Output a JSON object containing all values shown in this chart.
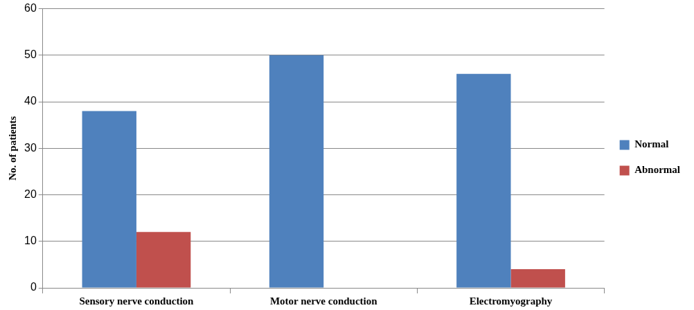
{
  "chart_data": {
    "type": "bar",
    "ylabel": "No. of patients",
    "categories": [
      "Sensory nerve conduction",
      "Motor nerve conduction",
      "Electromyography"
    ],
    "series": [
      {
        "name": "Normal",
        "color": "#4f81bd",
        "values": [
          38,
          50,
          46
        ]
      },
      {
        "name": "Abnormal",
        "color": "#c0504d",
        "values": [
          12,
          0,
          4
        ]
      }
    ],
    "ylim": [
      0,
      60
    ],
    "yticks": [
      0,
      10,
      20,
      30,
      40,
      50,
      60
    ],
    "grid": "y",
    "legend": "right"
  }
}
